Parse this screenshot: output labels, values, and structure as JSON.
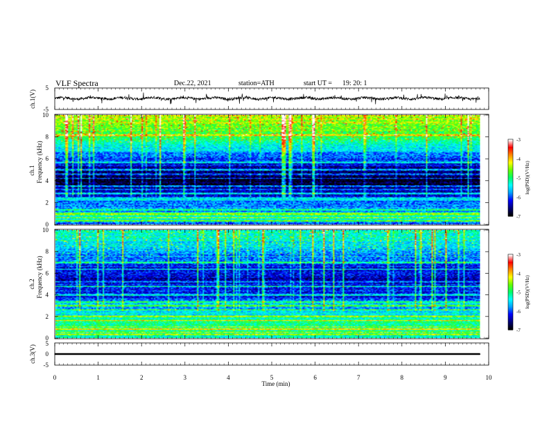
{
  "header": {
    "title": "VLF  Spectra",
    "date": "Dec.22, 2021",
    "station": "station=ATH",
    "start_label": "start  UT  =",
    "start_time": "19: 20: 1"
  },
  "colors": {
    "waveform": "#000000",
    "colormap": [
      "#000000",
      "#00007a",
      "#0000ff",
      "#00a0ff",
      "#00ffff",
      "#00ff66",
      "#66ff00",
      "#ffff00",
      "#ff8800",
      "#ff0000",
      "#ffffff"
    ]
  },
  "chart_data": [
    {
      "type": "line",
      "name": "ch1-waveform",
      "ylabel": "ch.1(V)",
      "ylim": [
        -5,
        5
      ],
      "yticks": [
        "5",
        "-5"
      ],
      "xlim": [
        0,
        10
      ],
      "x_span": [
        0,
        9.8
      ],
      "baseline": 0.2,
      "noise_amplitude": 0.6,
      "spike_amplitude": 2.5
    },
    {
      "type": "heatmap",
      "name": "ch1-spectrogram",
      "ylabel": "ch.1\nFrequency  (kHz)",
      "ylabel_lines": [
        "ch.1",
        "Frequency  (kHz)"
      ],
      "ylim": [
        0,
        10
      ],
      "yticks": [
        "10",
        "8",
        "6",
        "4",
        "2",
        "0"
      ],
      "xlim": [
        0,
        10
      ],
      "x_span": [
        0,
        9.8
      ],
      "colorbar_label": "log(PSD)(V²/Hz)",
      "colorbar_ticks": [
        "-3",
        "-4",
        "-5",
        "-6",
        "-7"
      ],
      "colorbar_range": [
        -7,
        -3
      ],
      "profile_khz_level": [
        [
          0,
          -5.9
        ],
        [
          0.4,
          -5.4
        ],
        [
          0.8,
          -5.2
        ],
        [
          1.2,
          -5.8
        ],
        [
          2.0,
          -6.0
        ],
        [
          2.4,
          -6.2
        ],
        [
          3.0,
          -6.4
        ],
        [
          3.6,
          -6.8
        ],
        [
          4.4,
          -6.9
        ],
        [
          5.0,
          -6.5
        ],
        [
          5.5,
          -6.3
        ],
        [
          6.0,
          -6.1
        ],
        [
          6.6,
          -5.7
        ],
        [
          7.2,
          -5.3
        ],
        [
          8.0,
          -5.0
        ],
        [
          9.0,
          -4.6
        ],
        [
          10.0,
          -4.3
        ]
      ],
      "tonal_lines_khz": [
        0.3,
        0.6,
        0.9,
        1.0,
        1.3,
        2.2,
        2.4,
        2.8,
        3.2,
        3.5,
        4.2,
        4.6,
        5.0,
        5.7,
        8.2
      ]
    },
    {
      "type": "heatmap",
      "name": "ch2-spectrogram",
      "ylabel": "ch.2\nFrequency  (kHz)",
      "ylabel_lines": [
        "ch.2",
        "Frequency  (kHz)"
      ],
      "ylim": [
        0,
        10
      ],
      "yticks": [
        "10",
        "8",
        "6",
        "4",
        "2",
        "0"
      ],
      "xlim": [
        0,
        10
      ],
      "x_span": [
        0,
        9.8
      ],
      "colorbar_label": "log(PSD)(V²/Hz)",
      "colorbar_ticks": [
        "-3",
        "-4",
        "-5",
        "-6",
        "-7"
      ],
      "colorbar_range": [
        -7,
        -3
      ],
      "profile_khz_level": [
        [
          0,
          -5.4
        ],
        [
          0.5,
          -5.2
        ],
        [
          1.0,
          -5.1
        ],
        [
          1.5,
          -5.0
        ],
        [
          2.0,
          -5.3
        ],
        [
          2.6,
          -5.6
        ],
        [
          3.2,
          -5.8
        ],
        [
          4.0,
          -6.2
        ],
        [
          4.8,
          -6.1
        ],
        [
          5.4,
          -6.5
        ],
        [
          6.0,
          -6.3
        ],
        [
          6.8,
          -6.1
        ],
        [
          7.5,
          -5.8
        ],
        [
          8.5,
          -5.5
        ],
        [
          10.0,
          -5.2
        ]
      ],
      "tonal_lines_khz": [
        0.3,
        0.5,
        0.8,
        1.0,
        1.6,
        2.0,
        2.6,
        3.0,
        3.3,
        4.0,
        4.8,
        5.2,
        6.4,
        7.0
      ]
    },
    {
      "type": "line",
      "name": "ch3-waveform",
      "ylabel": "ch.3(V)",
      "ylim": [
        -5,
        5
      ],
      "yticks": [
        "5",
        "0",
        "-5"
      ],
      "xlim": [
        0,
        10
      ],
      "x_span": [
        0,
        9.8
      ],
      "xlabel": "Time  (min)",
      "xticks": [
        "0",
        "1",
        "2",
        "3",
        "4",
        "5",
        "6",
        "7",
        "8",
        "9",
        "10"
      ],
      "baseline": 0.0,
      "band_width": 0.35
    }
  ]
}
